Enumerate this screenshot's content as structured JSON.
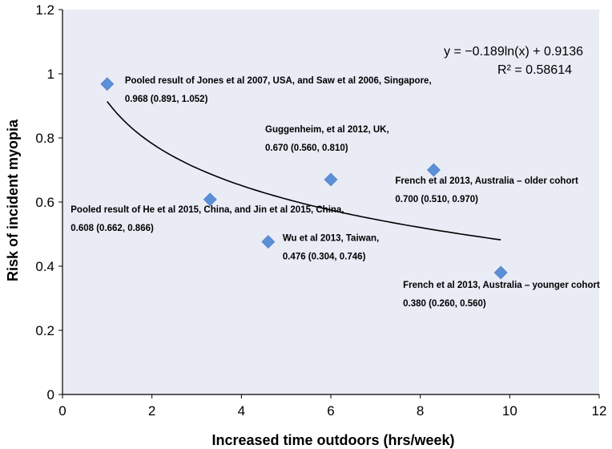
{
  "chart_data": {
    "type": "scatter",
    "title": "",
    "xlabel": "Increased time outdoors (hrs/week)",
    "ylabel": "Risk of incident  myopia",
    "xlim": [
      0,
      12
    ],
    "ylim": [
      0,
      1.2
    ],
    "x_ticks": [
      "0",
      "2",
      "4",
      "6",
      "8",
      "10",
      "12"
    ],
    "y_ticks": [
      "0",
      "0.2",
      "0.4",
      "0.6",
      "0.8",
      "1",
      "1.2"
    ],
    "grid": false,
    "marker_color": "#5b8fd6",
    "plot_background": "#e9ebf5",
    "points": [
      {
        "x": 1.0,
        "y": 0.968,
        "label_line1": "Pooled result of Jones et al 2007, USA, and Saw et al 2006, Singapore,",
        "label_line2": "0.968 (0.891, 1.052)"
      },
      {
        "x": 3.3,
        "y": 0.608,
        "label_line1": "Pooled result of He et al 2015, China, and Jin et al 2015, China,",
        "label_line2": "0.608 (0.662, 0.866)"
      },
      {
        "x": 4.6,
        "y": 0.476,
        "label_line1": "Wu et al 2013, Taiwan,",
        "label_line2": "0.476 (0.304, 0.746)"
      },
      {
        "x": 6.0,
        "y": 0.67,
        "label_line1": "Guggenheim,  et al 2012, UK,",
        "label_line2": "0.670 (0.560, 0.810)"
      },
      {
        "x": 8.3,
        "y": 0.7,
        "label_line1": "French et al 2013, Australia – older cohort",
        "label_line2": "0.700 (0.510, 0.970)"
      },
      {
        "x": 9.8,
        "y": 0.38,
        "label_line1": "French  et al 2013, Australia – younger cohort",
        "label_line2": "0.380 (0.260, 0.560)"
      }
    ],
    "trendline": {
      "type": "logarithmic",
      "a": -0.189,
      "b": 0.9136,
      "x_range": [
        1.0,
        9.8
      ],
      "equation_text": "y = −0.189ln(x) + 0.9136",
      "r2_text": "R² = 0.58614"
    }
  }
}
